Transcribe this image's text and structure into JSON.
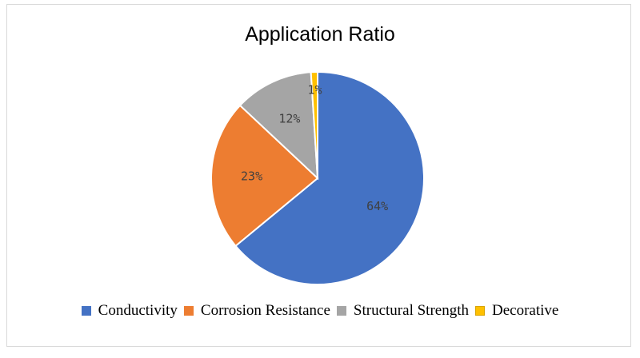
{
  "chart_data": {
    "type": "pie",
    "title": "Application Ratio",
    "categories": [
      "Conductivity",
      "Corrosion Resistance",
      "Structural Strength",
      "Decorative"
    ],
    "values": [
      64,
      23,
      12,
      1
    ],
    "labels": [
      "64%",
      "23%",
      "12%",
      "1%"
    ],
    "colors": [
      "#4472c4",
      "#ed7d31",
      "#a5a5a5",
      "#ffc000"
    ],
    "legend": "bottom"
  }
}
